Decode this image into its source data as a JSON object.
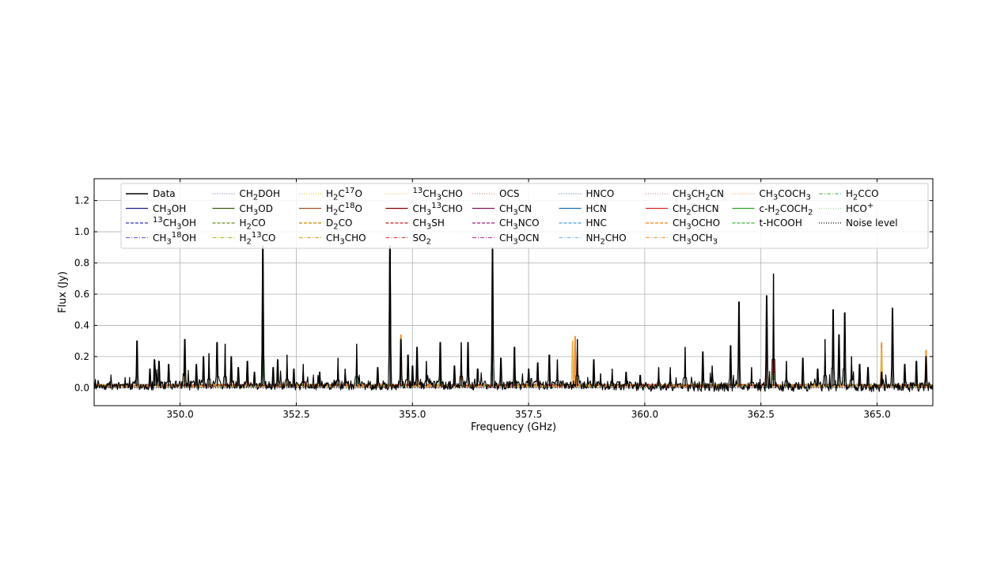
{
  "chart_data": {
    "type": "line",
    "xlabel": "Frequency (GHz)",
    "ylabel": "Flux (Jy)",
    "xlim": [
      348.15,
      366.2
    ],
    "ylim": [
      -0.115,
      1.34
    ],
    "xticks": [
      350.0,
      352.5,
      355.0,
      357.5,
      360.0,
      362.5,
      365.0
    ],
    "xtick_labels": [
      "350.0",
      "352.5",
      "355.0",
      "357.5",
      "360.0",
      "362.5",
      "365.0"
    ],
    "yticks": [
      0.0,
      0.2,
      0.4,
      0.6,
      0.8,
      1.0,
      1.2
    ],
    "ytick_labels": [
      "0.0",
      "0.2",
      "0.4",
      "0.6",
      "0.8",
      "1.0",
      "1.2"
    ],
    "grid": true,
    "legend_position": "top",
    "legend": [
      {
        "label": "Data",
        "color": "#000000",
        "dash": "solid"
      },
      {
        "label": "CH<sub>3</sub>OH",
        "color": "#1f1f8c",
        "dash": "solid"
      },
      {
        "label": "<sup>13</sup>CH<sub>3</sub>OH",
        "color": "#3535c8",
        "dash": "dashed"
      },
      {
        "label": "CH<sub>3</sub><sup>18</sup>OH",
        "color": "#7070e0",
        "dash": "dashdot"
      },
      {
        "label": "CH<sub>2</sub>DOH",
        "color": "#8a8ae6",
        "dash": "dotted"
      },
      {
        "label": "CH<sub>3</sub>OD",
        "color": "#3b5e1a",
        "dash": "solid"
      },
      {
        "label": "H<sub>2</sub>CO",
        "color": "#6b8e23",
        "dash": "dashed"
      },
      {
        "label": "H<sub>2</sub><sup>13</sup>CO",
        "color": "#b5b53a",
        "dash": "dashdot"
      },
      {
        "label": "H<sub>2</sub>C<sup>17</sup>O",
        "color": "#d8d850",
        "dash": "dotted"
      },
      {
        "label": "H<sub>2</sub>C<sup>18</sup>O",
        "color": "#a0522d",
        "dash": "solid"
      },
      {
        "label": "D<sub>2</sub>CO",
        "color": "#c88a00",
        "dash": "dashed"
      },
      {
        "label": "CH<sub>3</sub>CHO",
        "color": "#e0b040",
        "dash": "dashdot"
      },
      {
        "label": "<sup>13</sup>CH<sub>3</sub>CHO",
        "color": "#f0c880",
        "dash": "dotted"
      },
      {
        "label": "CH<sub>3</sub><sup>13</sup>CHO",
        "color": "#8b0000",
        "dash": "solid"
      },
      {
        "label": "CH<sub>3</sub>SH",
        "color": "#c81e1e",
        "dash": "dashed"
      },
      {
        "label": "SO<sub>2</sub>",
        "color": "#e05050",
        "dash": "dashdot"
      },
      {
        "label": "OCS",
        "color": "#e88a8a",
        "dash": "dotted"
      },
      {
        "label": "CH<sub>3</sub>CN",
        "color": "#7a1a5a",
        "dash": "solid"
      },
      {
        "label": "CH<sub>3</sub>NCO",
        "color": "#a0207a",
        "dash": "dashed"
      },
      {
        "label": "CH<sub>3</sub>OCN",
        "color": "#c04aa0",
        "dash": "dashdot"
      },
      {
        "label": "HNCO",
        "color": "#6a8ab0",
        "dash": "dotted"
      },
      {
        "label": "HCN",
        "color": "#1f6fb4",
        "dash": "solid"
      },
      {
        "label": "HNC",
        "color": "#4a9ae0",
        "dash": "dashed"
      },
      {
        "label": "NH<sub>2</sub>CHO",
        "color": "#8ac0e8",
        "dash": "dashdot"
      },
      {
        "label": "CH<sub>3</sub>CH<sub>2</sub>CN",
        "color": "#c8a0a0",
        "dash": "dotted"
      },
      {
        "label": "CH<sub>2</sub>CHCN",
        "color": "#d62728",
        "dash": "solid"
      },
      {
        "label": "CH<sub>3</sub>OCHO",
        "color": "#ff7f0e",
        "dash": "dashed"
      },
      {
        "label": "CH<sub>3</sub>OCH<sub>3</sub>",
        "color": "#ffa040",
        "dash": "dashdot"
      },
      {
        "label": "CH<sub>3</sub>COCH<sub>3</sub>",
        "color": "#ffb070",
        "dash": "dotted"
      },
      {
        "label": "c-H<sub>2</sub>COCH<sub>2</sub>",
        "color": "#2ca02c",
        "dash": "solid"
      },
      {
        "label": "t-HCOOH",
        "color": "#3cb43c",
        "dash": "dashed"
      },
      {
        "label": "H<sub>2</sub>CCO",
        "color": "#70c870",
        "dash": "dashdot"
      },
      {
        "label": "HCO<sup>+</sup>",
        "color": "#a0d8a0",
        "dash": "dotted"
      },
      {
        "label": "Noise level",
        "color": "#000000",
        "dash": "dotted"
      }
    ],
    "series": [
      {
        "name": "Data",
        "color": "#000000",
        "peaks": [
          [
            349.07,
            0.3
          ],
          [
            349.35,
            0.12
          ],
          [
            349.45,
            0.18
          ],
          [
            349.55,
            0.17
          ],
          [
            349.75,
            0.15
          ],
          [
            350.1,
            0.31
          ],
          [
            350.35,
            0.15
          ],
          [
            350.5,
            0.2
          ],
          [
            350.62,
            0.22
          ],
          [
            350.8,
            0.29
          ],
          [
            350.97,
            0.28
          ],
          [
            351.1,
            0.2
          ],
          [
            351.25,
            0.13
          ],
          [
            351.45,
            0.17
          ],
          [
            351.6,
            0.1
          ],
          [
            351.78,
            0.91
          ],
          [
            352.0,
            0.13
          ],
          [
            352.1,
            0.18
          ],
          [
            352.3,
            0.21
          ],
          [
            352.45,
            0.12
          ],
          [
            352.65,
            0.15
          ],
          [
            353.0,
            0.1
          ],
          [
            353.4,
            0.19
          ],
          [
            353.55,
            0.12
          ],
          [
            353.8,
            0.28
          ],
          [
            354.25,
            0.13
          ],
          [
            354.52,
            0.91
          ],
          [
            354.75,
            0.31
          ],
          [
            354.9,
            0.21
          ],
          [
            355.0,
            0.14
          ],
          [
            355.1,
            0.26
          ],
          [
            355.3,
            0.17
          ],
          [
            355.6,
            0.29
          ],
          [
            355.9,
            0.14
          ],
          [
            356.05,
            0.29
          ],
          [
            356.2,
            0.29
          ],
          [
            356.4,
            0.12
          ],
          [
            356.72,
            0.9
          ],
          [
            356.9,
            0.19
          ],
          [
            357.2,
            0.26
          ],
          [
            357.5,
            0.12
          ],
          [
            357.7,
            0.16
          ],
          [
            357.95,
            0.21
          ],
          [
            358.12,
            0.18
          ],
          [
            358.55,
            0.31
          ],
          [
            358.9,
            0.18
          ],
          [
            359.05,
            0.09
          ],
          [
            359.3,
            0.12
          ],
          [
            359.6,
            0.1
          ],
          [
            359.9,
            0.08
          ],
          [
            360.3,
            0.13
          ],
          [
            360.55,
            0.13
          ],
          [
            360.87,
            0.26
          ],
          [
            361.25,
            0.23
          ],
          [
            361.45,
            0.14
          ],
          [
            361.85,
            0.27
          ],
          [
            362.03,
            0.55
          ],
          [
            362.3,
            0.13
          ],
          [
            362.62,
            0.59
          ],
          [
            362.77,
            0.73
          ],
          [
            363.05,
            0.17
          ],
          [
            363.4,
            0.19
          ],
          [
            363.72,
            0.12
          ],
          [
            363.88,
            0.31
          ],
          [
            364.05,
            0.5
          ],
          [
            364.18,
            0.34
          ],
          [
            364.3,
            0.48
          ],
          [
            364.45,
            0.2
          ],
          [
            364.62,
            0.15
          ],
          [
            364.8,
            0.13
          ],
          [
            365.1,
            0.1
          ],
          [
            365.33,
            0.51
          ],
          [
            365.6,
            0.15
          ],
          [
            365.85,
            0.17
          ],
          [
            366.05,
            0.2
          ]
        ]
      },
      {
        "name": "CH<sub>3</sub>OH",
        "color": "#1f1f8c",
        "peaks": [
          [
            351.78,
            0.89
          ],
          [
            354.52,
            0.89
          ]
        ]
      },
      {
        "name": "CH<sub>3</sub>OCHO",
        "color": "#ff7f0e",
        "peaks": [
          [
            350.1,
            0.3
          ],
          [
            351.1,
            0.18
          ],
          [
            352.3,
            0.19
          ],
          [
            353.4,
            0.18
          ],
          [
            354.75,
            0.34
          ],
          [
            355.1,
            0.24
          ],
          [
            356.05,
            0.22
          ],
          [
            358.5,
            0.33
          ],
          [
            359.3,
            0.1
          ],
          [
            360.3,
            0.11
          ],
          [
            362.62,
            0.55
          ],
          [
            365.1,
            0.29
          ],
          [
            365.85,
            0.17
          ],
          [
            366.05,
            0.24
          ]
        ]
      },
      {
        "name": "c-H<sub>2</sub>COCH<sub>2</sub>",
        "color": "#2ca02c",
        "peaks": [
          [
            351.78,
            0.32
          ],
          [
            353.8,
            0.12
          ],
          [
            355.6,
            0.12
          ],
          [
            356.72,
            0.9
          ],
          [
            357.2,
            0.12
          ],
          [
            360.55,
            0.11
          ],
          [
            362.77,
            0.22
          ],
          [
            364.3,
            0.16
          ]
        ]
      },
      {
        "name": "CH<sub>2</sub>CHCN",
        "color": "#d62728",
        "peaks": [
          [
            351.45,
            0.15
          ],
          [
            352.65,
            0.13
          ],
          [
            354.25,
            0.12
          ],
          [
            355.9,
            0.12
          ],
          [
            357.7,
            0.14
          ],
          [
            362.62,
            0.45
          ],
          [
            362.77,
            0.4
          ],
          [
            364.62,
            0.13
          ]
        ]
      },
      {
        "name": "CH<sub>3</sub>CHO",
        "color": "#e0b040",
        "peaks": [
          [
            350.1,
            0.28
          ],
          [
            352.1,
            0.16
          ],
          [
            353.55,
            0.12
          ],
          [
            354.9,
            0.2
          ],
          [
            358.45,
            0.3
          ],
          [
            360.3,
            0.12
          ],
          [
            365.1,
            0.25
          ]
        ]
      }
    ]
  }
}
